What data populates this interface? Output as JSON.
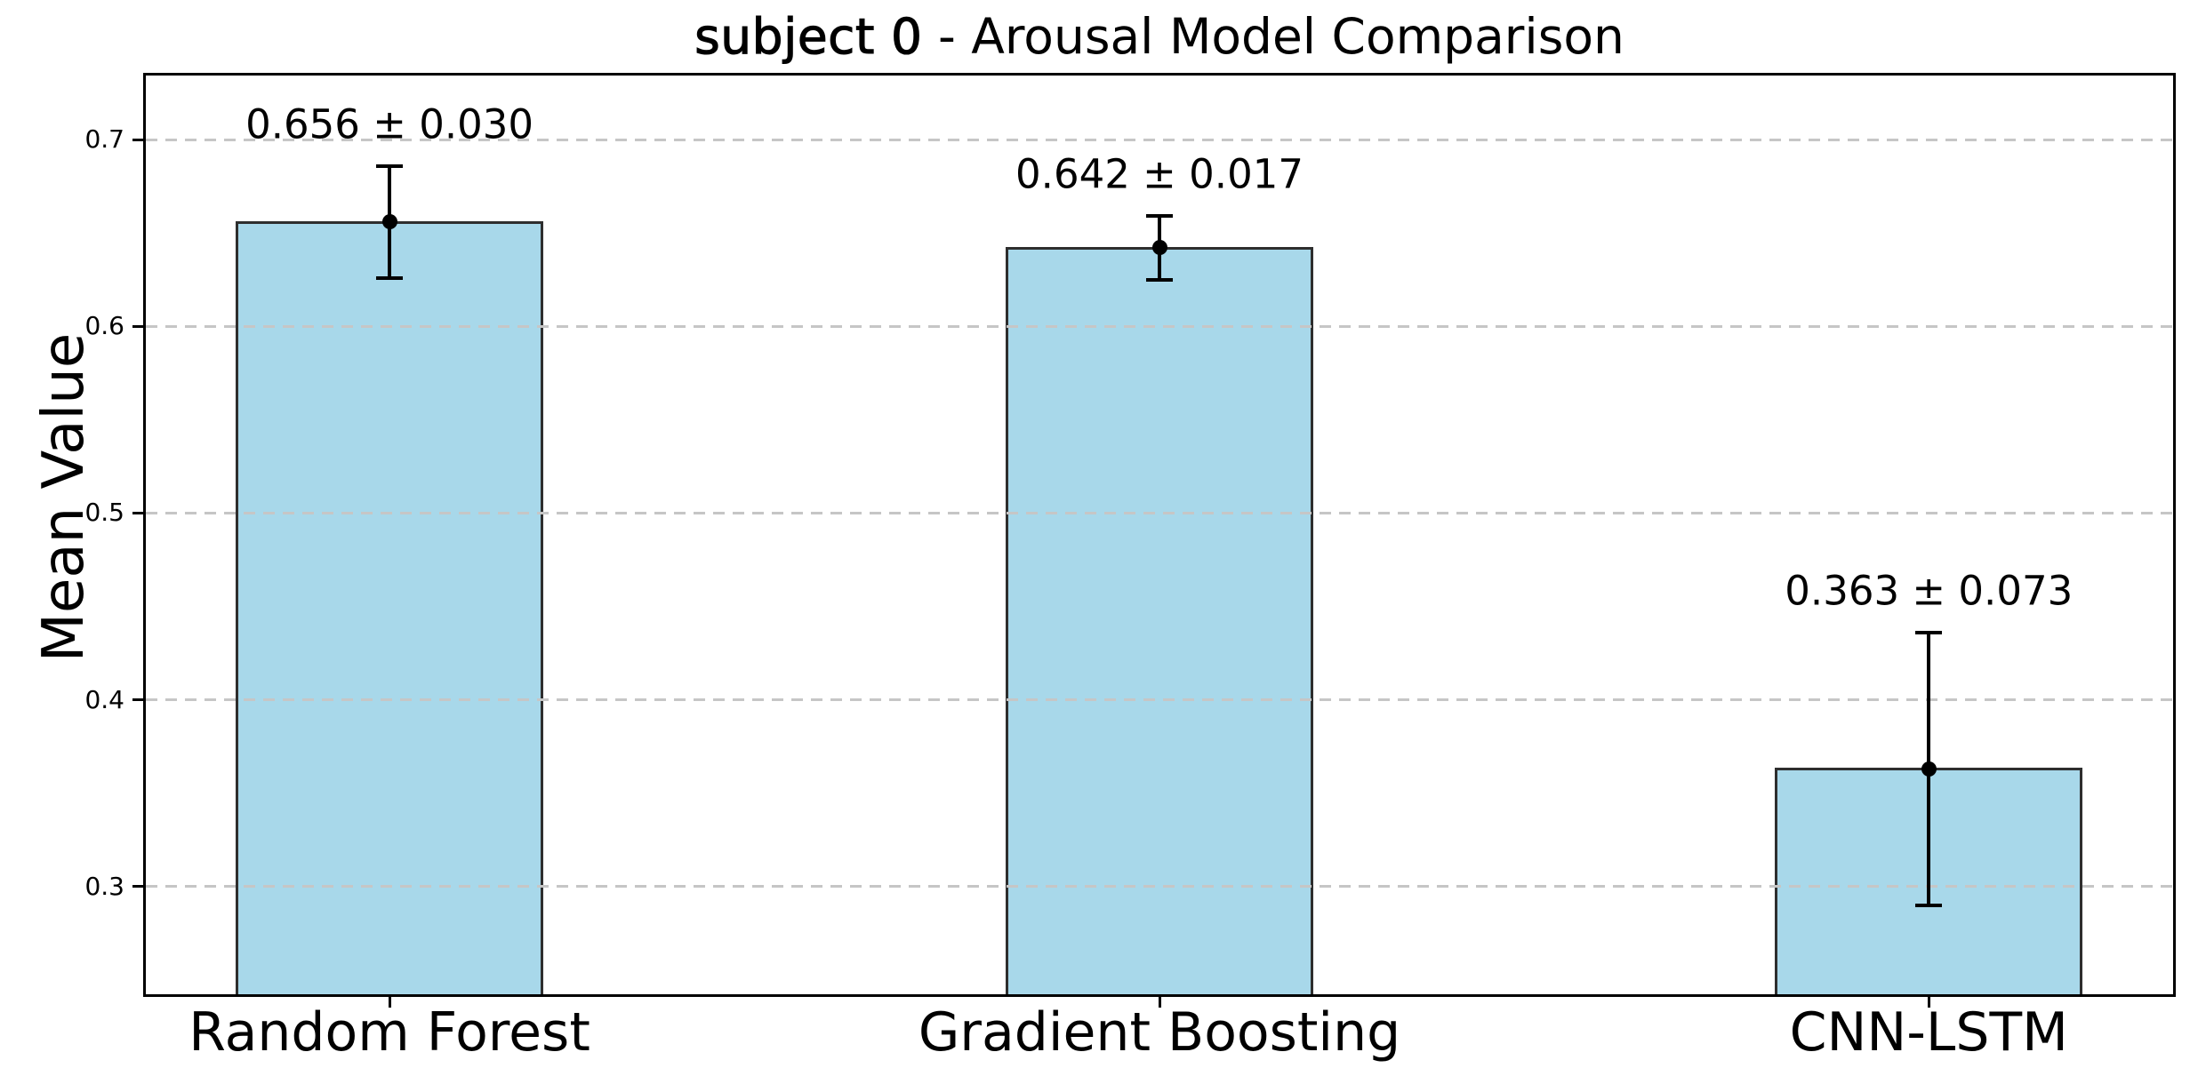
{
  "figure": {
    "title_prefix": "subject 0",
    "title_suffix": " - Arousal Model Comparison",
    "ylabel": "Mean Value"
  },
  "chart_data": {
    "type": "bar",
    "title": "subject 0 - Arousal Model Comparison",
    "xlabel": "",
    "ylabel": "Mean Value",
    "categories": [
      "Random Forest",
      "Gradient Boosting",
      "CNN-LSTM"
    ],
    "values": [
      0.656,
      0.642,
      0.363
    ],
    "errors": [
      0.03,
      0.017,
      0.073
    ],
    "bar_labels": [
      "0.656 ± 0.030",
      "0.642 ± 0.017",
      "0.363 ± 0.073"
    ],
    "yticks": [
      0.7,
      0.6,
      0.5,
      0.4,
      0.3
    ],
    "ytick_labels": [
      "0.7",
      "0.6",
      "0.5",
      "0.4",
      "0.3"
    ],
    "ylim": [
      0.2423,
      0.7343
    ],
    "grid": {
      "axis": "y",
      "style": "dashed",
      "on": true
    },
    "legend": "none",
    "colors": {
      "bar_fill": "#a8d8ea",
      "bar_edge": "#2e2e2e",
      "error": "#000000",
      "grid": "#c6c6c6",
      "text": "#000000",
      "background": "#ffffff"
    }
  }
}
